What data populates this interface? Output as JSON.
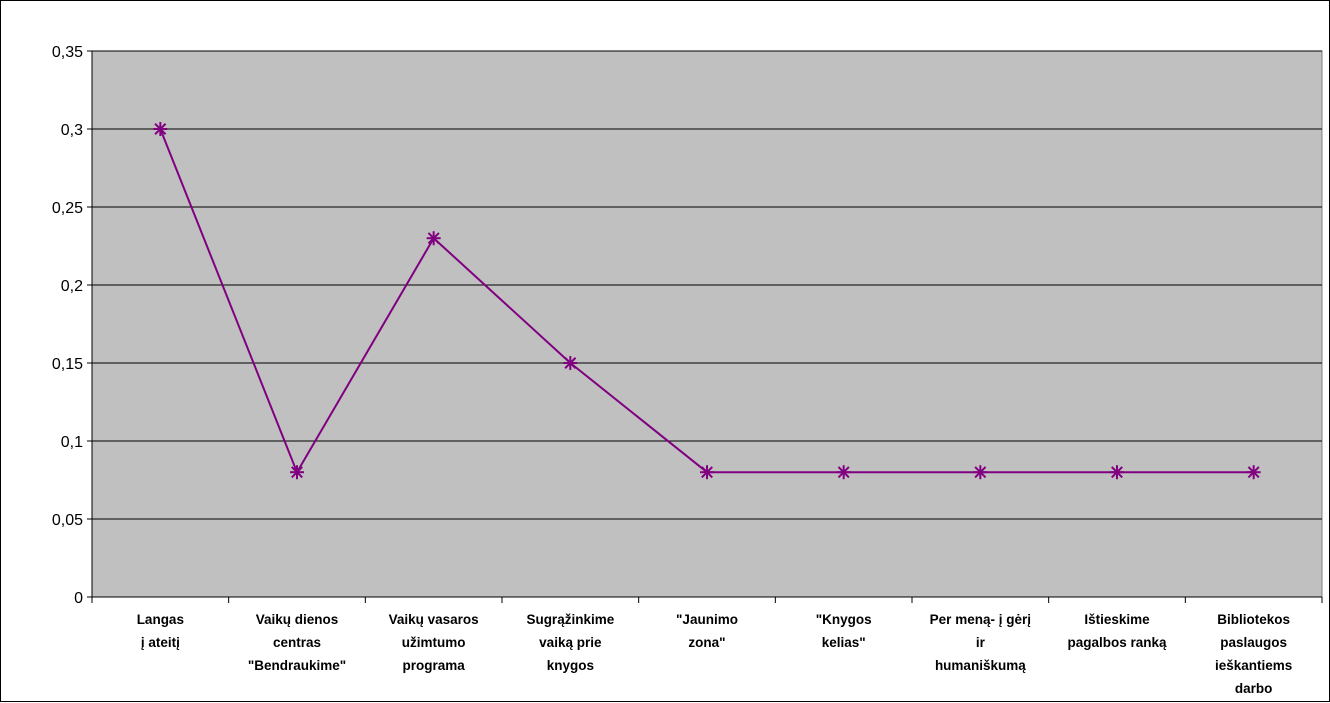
{
  "chart_data": {
    "type": "line",
    "title": "",
    "xlabel": "",
    "ylabel": "",
    "categories": [
      [
        "Langas",
        "į ateitį"
      ],
      [
        "Vaikų dienos",
        "centras",
        "\"Bendraukime\""
      ],
      [
        "Vaikų vasaros",
        "užimtumo",
        "programa"
      ],
      [
        "Sugrąžinkime",
        "vaiką prie",
        "knygos"
      ],
      [
        "\"Jaunimo",
        "zona\""
      ],
      [
        "\"Knygos",
        "kelias\""
      ],
      [
        "Per meną- į gėrį",
        "ir",
        "humaniškumą"
      ],
      [
        "Ištieskime",
        "pagalbos ranką"
      ],
      [
        "Bibliotekos",
        "paslaugos",
        "ieškantiems",
        "darbo"
      ]
    ],
    "series": [
      {
        "values": [
          0.3,
          0.08,
          0.23,
          0.15,
          0.08,
          0.08,
          0.08,
          0.08,
          0.08
        ]
      }
    ],
    "ylim": [
      0,
      0.35
    ],
    "yticks": [
      "0",
      "0,05",
      "0,1",
      "0,15",
      "0,2",
      "0,25",
      "0,3",
      "0,35"
    ],
    "grid": true,
    "colors": {
      "plot_bg": "#c0c0c0",
      "line": "#800080",
      "grid": "#000000"
    }
  }
}
